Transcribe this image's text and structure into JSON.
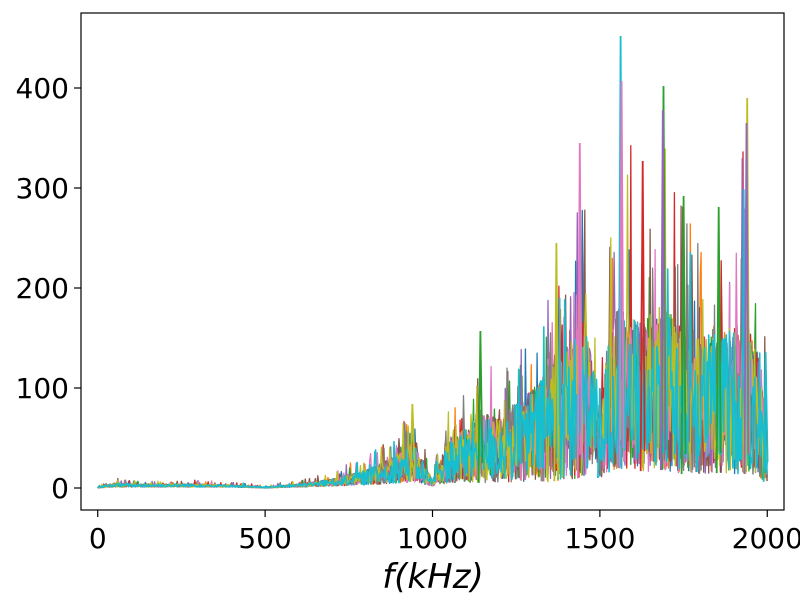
{
  "chart_data": {
    "type": "line",
    "title": "",
    "xlabel": "f(kHz)",
    "ylabel": "",
    "xlim": [
      -50,
      2050
    ],
    "ylim": [
      -22,
      475
    ],
    "xticks": [
      0,
      500,
      1000,
      1500,
      2000
    ],
    "yticks": [
      0,
      100,
      200,
      300,
      400
    ],
    "grid": false,
    "legend": "none",
    "series_colors": [
      "#1f77b4",
      "#ff7f0e",
      "#2ca02c",
      "#d62728",
      "#9467bd",
      "#8c564b",
      "#e377c2",
      "#7f7f7f",
      "#bcbd22",
      "#17becf"
    ],
    "envelope": {
      "x": [
        0,
        50,
        100,
        200,
        300,
        400,
        500,
        600,
        700,
        800,
        850,
        900,
        940,
        970,
        1000,
        1050,
        1100,
        1150,
        1200,
        1250,
        1300,
        1350,
        1400,
        1450,
        1490,
        1500,
        1520,
        1560,
        1600,
        1650,
        1690,
        1720,
        1750,
        1800,
        1850,
        1900,
        1940,
        1970,
        2000
      ],
      "upper": [
        2,
        10,
        8,
        7,
        8,
        6,
        3,
        8,
        18,
        35,
        45,
        60,
        80,
        45,
        20,
        80,
        95,
        140,
        110,
        135,
        160,
        200,
        220,
        340,
        180,
        100,
        190,
        450,
        330,
        270,
        400,
        300,
        290,
        250,
        280,
        270,
        390,
        240,
        135
      ],
      "band_top": [
        1,
        5,
        4,
        4,
        4,
        3,
        1,
        4,
        9,
        18,
        25,
        35,
        45,
        28,
        8,
        50,
        60,
        75,
        70,
        85,
        100,
        120,
        140,
        170,
        110,
        40,
        140,
        190,
        170,
        160,
        190,
        170,
        160,
        150,
        165,
        160,
        170,
        140,
        60
      ],
      "band_bottom": [
        0,
        1,
        1,
        1,
        1,
        1,
        0,
        1,
        2,
        3,
        4,
        5,
        6,
        4,
        2,
        5,
        5,
        5,
        6,
        6,
        7,
        6,
        8,
        10,
        30,
        10,
        15,
        20,
        18,
        16,
        18,
        16,
        14,
        14,
        15,
        14,
        14,
        12,
        5
      ]
    }
  },
  "axes": {
    "xlabel": "f(kHz)"
  }
}
